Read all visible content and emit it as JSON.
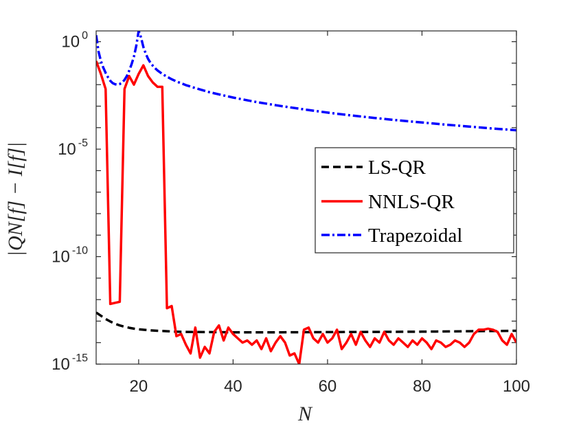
{
  "chart_data": {
    "type": "line",
    "title": "",
    "xlabel": "N",
    "ylabel": "|Q_N[f] − I[f]|",
    "ylabel_text": "|QN[f] − I[f]|",
    "xscale": "linear",
    "yscale": "log",
    "xlim": [
      11,
      100
    ],
    "ylim_exp": [
      -15,
      0.5
    ],
    "x_ticks": [
      {
        "value": 20,
        "label": "20"
      },
      {
        "value": 40,
        "label": "40"
      },
      {
        "value": 60,
        "label": "60"
      },
      {
        "value": 80,
        "label": "80"
      },
      {
        "value": 100,
        "label": "100"
      }
    ],
    "y_ticks": [
      {
        "exp": 0,
        "base": "10",
        "sup": "0"
      },
      {
        "exp": -5,
        "base": "10",
        "sup": "-5"
      },
      {
        "exp": -10,
        "base": "10",
        "sup": "-10"
      },
      {
        "exp": -15,
        "base": "10",
        "sup": "-15"
      }
    ],
    "legend_position": "center-right",
    "series": [
      {
        "name": "LS-QR",
        "color": "#000000",
        "style": "dashed",
        "x": [
          11,
          12,
          13,
          14,
          15,
          16,
          17,
          18,
          19,
          20,
          22,
          24,
          26,
          28,
          30,
          35,
          40,
          50,
          60,
          70,
          80,
          90,
          100
        ],
        "log10_y": [
          -12.6,
          -12.75,
          -12.9,
          -13.02,
          -13.12,
          -13.2,
          -13.26,
          -13.31,
          -13.35,
          -13.38,
          -13.42,
          -13.45,
          -13.47,
          -13.49,
          -13.5,
          -13.51,
          -13.52,
          -13.52,
          -13.51,
          -13.5,
          -13.49,
          -13.47,
          -13.45
        ]
      },
      {
        "name": "NNLS-QR",
        "color": "#ff0000",
        "style": "solid",
        "x": [
          11,
          12,
          13,
          14,
          15,
          16,
          17,
          18,
          19,
          20,
          21,
          22,
          23,
          24,
          25,
          26,
          27,
          28,
          29,
          30,
          31,
          32,
          33,
          34,
          35,
          36,
          37,
          38,
          39,
          40,
          41,
          42,
          43,
          44,
          45,
          46,
          47,
          48,
          49,
          50,
          51,
          52,
          53,
          54,
          55,
          56,
          57,
          58,
          59,
          60,
          61,
          62,
          63,
          64,
          65,
          66,
          67,
          68,
          69,
          70,
          71,
          72,
          73,
          74,
          75,
          76,
          77,
          78,
          79,
          80,
          81,
          82,
          83,
          84,
          85,
          86,
          87,
          88,
          89,
          90,
          91,
          92,
          93,
          94,
          95,
          96,
          97,
          98,
          99,
          100
        ],
        "log10_y": [
          -0.9,
          -1.5,
          -2.2,
          -12.2,
          -12.15,
          -12.1,
          -2.2,
          -1.6,
          -2.0,
          -1.5,
          -1.1,
          -1.6,
          -1.9,
          -2.1,
          -2.1,
          -12.4,
          -12.3,
          -13.7,
          -13.6,
          -14.1,
          -14.5,
          -13.3,
          -14.7,
          -14.2,
          -14.5,
          -13.5,
          -13.2,
          -13.9,
          -13.3,
          -13.6,
          -13.8,
          -14.0,
          -13.9,
          -14.1,
          -13.9,
          -14.3,
          -13.8,
          -14.4,
          -14.0,
          -13.7,
          -14.0,
          -14.6,
          -14.5,
          -15.0,
          -13.4,
          -13.3,
          -13.8,
          -14.0,
          -13.6,
          -14.0,
          -13.8,
          -13.4,
          -14.3,
          -14.0,
          -13.6,
          -14.1,
          -13.5,
          -13.9,
          -14.2,
          -13.8,
          -14.0,
          -13.5,
          -13.9,
          -14.1,
          -13.8,
          -14.0,
          -14.2,
          -13.9,
          -14.1,
          -13.8,
          -14.0,
          -14.3,
          -13.9,
          -14.0,
          -14.2,
          -14.1,
          -13.9,
          -14.0,
          -14.2,
          -14.0,
          -13.6,
          -13.4,
          -13.4,
          -13.35,
          -13.4,
          -13.5,
          -13.9,
          -14.1,
          -13.6,
          -14.0
        ]
      },
      {
        "name": "Trapezoidal",
        "color": "#0000ff",
        "style": "dashdot",
        "x": [
          11,
          11.5,
          12,
          12.5,
          13,
          13.5,
          14,
          14.5,
          15,
          15.5,
          16,
          16.5,
          17,
          17.5,
          18,
          18.5,
          19,
          19.5,
          20,
          20.5,
          21,
          21.5,
          22,
          22.5,
          23,
          23.5,
          24,
          25,
          26,
          27,
          28,
          30,
          32,
          35,
          40,
          45,
          50,
          55,
          60,
          65,
          70,
          75,
          80,
          85,
          90,
          95,
          100
        ],
        "log10_y": [
          0.3,
          -0.45,
          -0.9,
          -1.2,
          -1.45,
          -1.65,
          -1.82,
          -1.93,
          -1.98,
          -2.0,
          -1.97,
          -1.9,
          -1.78,
          -1.6,
          -1.35,
          -1.05,
          -0.7,
          -0.2,
          0.5,
          0.2,
          -0.25,
          -0.55,
          -0.8,
          -0.98,
          -1.12,
          -1.24,
          -1.34,
          -1.5,
          -1.63,
          -1.75,
          -1.85,
          -2.02,
          -2.16,
          -2.35,
          -2.6,
          -2.81,
          -2.99,
          -3.15,
          -3.3,
          -3.43,
          -3.55,
          -3.66,
          -3.76,
          -3.86,
          -3.95,
          -4.04,
          -4.12
        ]
      }
    ]
  }
}
